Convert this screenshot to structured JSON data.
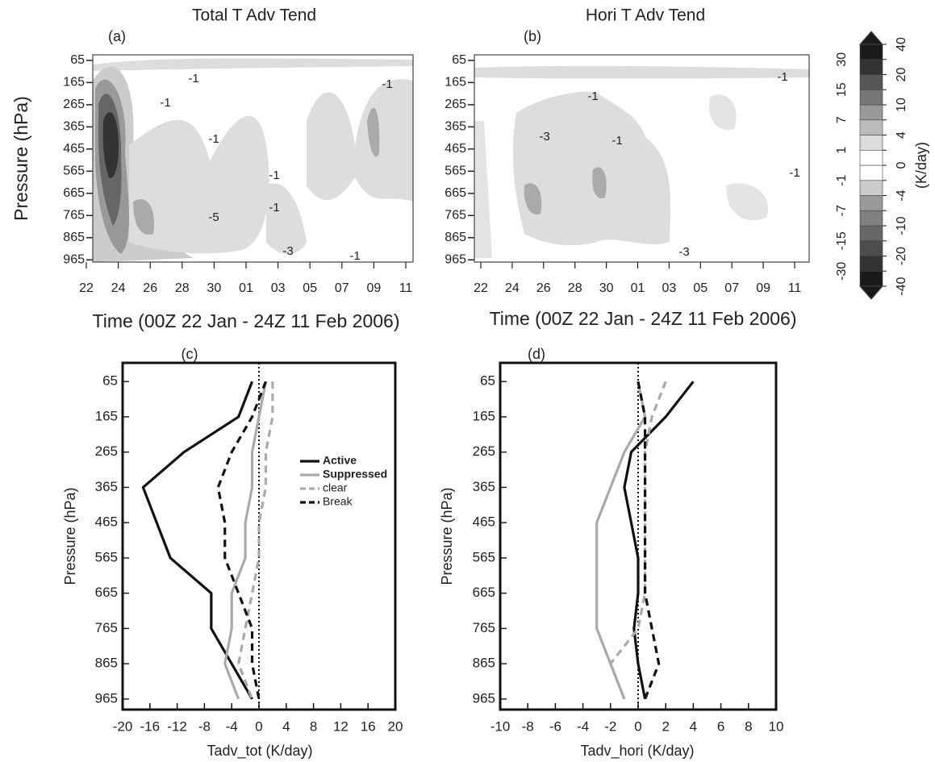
{
  "chart_data": [
    {
      "type": "contour",
      "title": "Total T Adv Tend",
      "panel_label": "(a)",
      "categories": [
        "22",
        "24",
        "26",
        "28",
        "30",
        "01",
        "03",
        "05",
        "07",
        "09",
        "11"
      ],
      "xlabel": "Time (00Z 22 Jan - 24Z 11 Feb 2006)",
      "ylabel": "Pressure (hPa)",
      "ylim": [
        40,
        975
      ],
      "y_inverted": true,
      "yticks": [
        65,
        165,
        265,
        365,
        465,
        565,
        665,
        765,
        865,
        965
      ],
      "annotations": [
        "-1",
        "-1",
        "-1",
        "-1",
        "-5",
        "-1",
        "-3",
        "-1",
        "-1"
      ]
    },
    {
      "type": "contour",
      "title": "Hori T Adv Tend",
      "panel_label": "(b)",
      "categories": [
        "22",
        "24",
        "26",
        "28",
        "30",
        "01",
        "03",
        "05",
        "07",
        "09",
        "11"
      ],
      "xlabel": "Time (00Z 22 Jan - 24Z 11 Feb 2006)",
      "ylim": [
        40,
        975
      ],
      "y_inverted": true,
      "yticks": [
        65,
        165,
        265,
        365,
        465,
        565,
        665,
        765,
        865,
        965
      ],
      "annotations": [
        "-1",
        "-3",
        "-1",
        "-1",
        "-3",
        "-1"
      ],
      "colorbar": {
        "label": "(K/day)",
        "ticks": [
          -40,
          -30,
          -20,
          -15,
          -10,
          -7,
          -4,
          -1,
          0,
          1,
          4,
          7,
          10,
          15,
          20,
          30,
          40
        ],
        "colors": [
          "#1a1a1a",
          "#333333",
          "#4d4d4d",
          "#666666",
          "#808080",
          "#999999",
          "#cccccc",
          "#ffffff",
          "#ffffff",
          "#dddddd",
          "#bbbbbb",
          "#999999",
          "#777777",
          "#555555",
          "#333333",
          "#1a1a1a"
        ]
      }
    },
    {
      "type": "line",
      "panel_label": "(c)",
      "xlabel": "Tadv_tot (K/day)",
      "ylabel": "Pressure (hPa)",
      "y": [
        65,
        165,
        265,
        365,
        465,
        565,
        665,
        765,
        865,
        965
      ],
      "xlim": [
        -20,
        20
      ],
      "xticks": [
        -20,
        -16,
        -12,
        -8,
        -4,
        0,
        4,
        8,
        12,
        16,
        20
      ],
      "ylim": [
        12,
        995
      ],
      "y_inverted": true,
      "yticks": [
        65,
        165,
        265,
        365,
        465,
        565,
        665,
        765,
        865,
        965
      ],
      "series": [
        {
          "name": "Active",
          "color": "#111111",
          "dashed": false,
          "values": [
            -1,
            -3,
            -11,
            -17,
            -15,
            -13,
            -7,
            -7,
            -4,
            -1
          ]
        },
        {
          "name": "Suppressed",
          "color": "#aaaaaa",
          "dashed": false,
          "values": [
            1,
            0,
            -1,
            -1,
            -2,
            -2,
            -4,
            -4,
            -5,
            -3
          ]
        },
        {
          "name": "clear",
          "color": "#aaaaaa",
          "dashed": true,
          "values": [
            2,
            2,
            1,
            1,
            0,
            0,
            -1,
            -2,
            -3,
            -1
          ]
        },
        {
          "name": "Break",
          "color": "#111111",
          "dashed": true,
          "values": [
            1,
            -1,
            -4,
            -6,
            -5,
            -5,
            -3,
            -1,
            -1,
            0
          ]
        }
      ]
    },
    {
      "type": "line",
      "panel_label": "(d)",
      "xlabel": "Tadv_hori (K/day)",
      "ylabel": "Pressure (hPa)",
      "y": [
        65,
        165,
        265,
        365,
        465,
        565,
        665,
        765,
        865,
        965
      ],
      "xlim": [
        -10,
        10
      ],
      "xticks": [
        -10,
        -8,
        -6,
        -4,
        -2,
        0,
        2,
        4,
        6,
        8,
        10
      ],
      "ylim": [
        12,
        995
      ],
      "y_inverted": true,
      "yticks": [
        65,
        165,
        265,
        365,
        465,
        565,
        665,
        765,
        865,
        965
      ],
      "series": [
        {
          "name": "Active",
          "color": "#111111",
          "dashed": false,
          "values": [
            4,
            2,
            -0.5,
            -1,
            -0.5,
            0,
            0,
            -0.3,
            0,
            0.5
          ]
        },
        {
          "name": "Suppressed",
          "color": "#aaaaaa",
          "dashed": false,
          "values": [
            0,
            0.5,
            -1,
            -2,
            -3,
            -3,
            -3,
            -3,
            -2,
            -1
          ]
        },
        {
          "name": "clear",
          "color": "#aaaaaa",
          "dashed": true,
          "values": [
            2,
            1,
            0.5,
            0.5,
            0.5,
            0.5,
            0.5,
            0,
            -2,
            -1
          ]
        },
        {
          "name": "Break",
          "color": "#111111",
          "dashed": true,
          "values": [
            0,
            0.5,
            0.5,
            0.5,
            0.5,
            0.5,
            0.5,
            1,
            1.5,
            0.5
          ]
        }
      ]
    }
  ]
}
